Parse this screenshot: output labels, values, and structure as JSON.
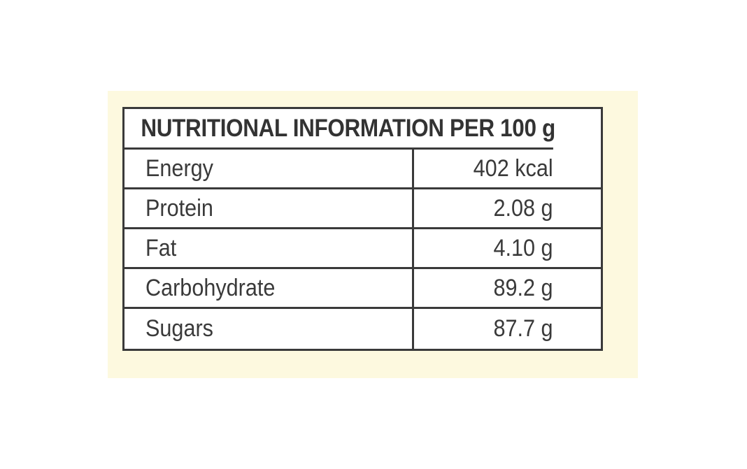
{
  "colors": {
    "panel_background": "#fdf9df",
    "table_border": "#3a3a3a",
    "text": "#3a3a3a"
  },
  "nutrition_table": {
    "title": "NUTRITIONAL INFORMATION PER 100 g",
    "rows": [
      {
        "name": "Energy",
        "value": "402 kcal"
      },
      {
        "name": "Protein",
        "value": "2.08 g"
      },
      {
        "name": "Fat",
        "value": "4.10 g"
      },
      {
        "name": "Carbohydrate",
        "value": "89.2 g"
      },
      {
        "name": "Sugars",
        "value": "87.7 g"
      }
    ]
  }
}
